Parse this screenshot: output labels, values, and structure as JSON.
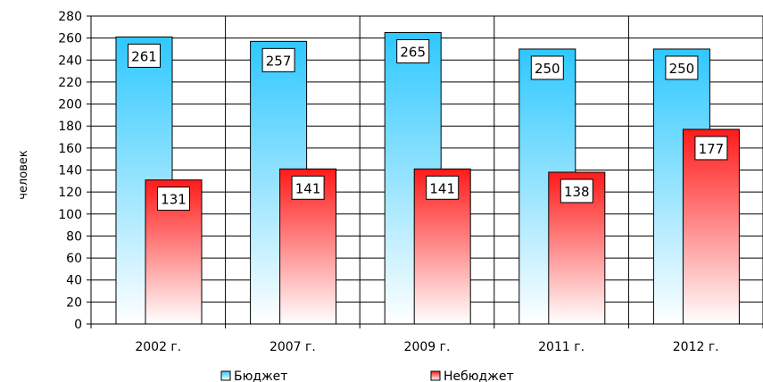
{
  "chart_data": {
    "type": "bar",
    "categories": [
      "2002 г.",
      "2007 г.",
      "2009 г.",
      "2011 г.",
      "2012 г."
    ],
    "series": [
      {
        "name": "Бюджет",
        "values": [
          261,
          257,
          265,
          250,
          250
        ]
      },
      {
        "name": "Небюджет",
        "values": [
          131,
          141,
          141,
          138,
          177
        ]
      }
    ],
    "ylabel": "человек",
    "ylim": [
      0,
      280
    ],
    "ytick_step": 20,
    "grid": true,
    "legend": "bottom",
    "colors": {
      "budget_top": "#33ccff",
      "budget_bottom": "#ffffff",
      "nonbudget_top": "#ff2020",
      "nonbudget_bottom": "#ffffff",
      "grid": "#000000"
    }
  }
}
